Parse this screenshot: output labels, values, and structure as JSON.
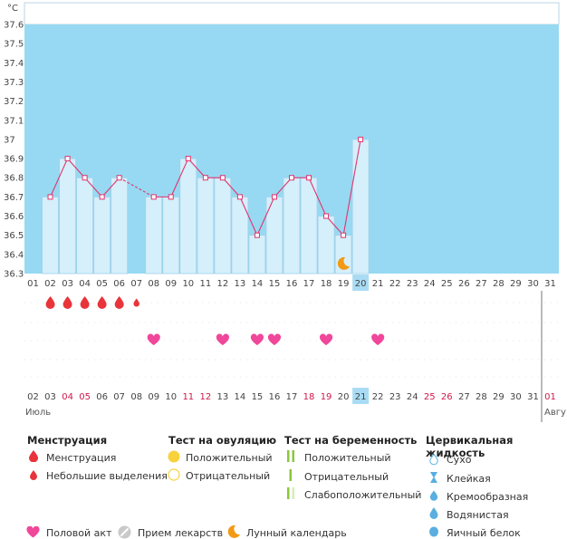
{
  "chart_data": {
    "type": "bar",
    "unit": "°C",
    "ylim": [
      36.3,
      37.6
    ],
    "y_ticks": [
      "36.3",
      "36.4",
      "36.5",
      "36.6",
      "36.7",
      "36.8",
      "36.9",
      "37",
      "37.1",
      "37.2",
      "37.3",
      "37.4",
      "37.5",
      "37.6"
    ],
    "x_top": [
      "01",
      "02",
      "03",
      "04",
      "05",
      "06",
      "07",
      "08",
      "09",
      "10",
      "11",
      "12",
      "13",
      "14",
      "15",
      "16",
      "17",
      "18",
      "19",
      "20",
      "21",
      "22",
      "23",
      "24",
      "25",
      "26",
      "27",
      "28",
      "29",
      "30",
      "31"
    ],
    "values": [
      null,
      36.7,
      36.9,
      36.8,
      36.7,
      36.8,
      null,
      36.7,
      36.7,
      36.9,
      36.8,
      36.8,
      36.7,
      36.5,
      36.7,
      36.8,
      36.8,
      36.6,
      36.5,
      37.0,
      null,
      null,
      null,
      null,
      null,
      null,
      null,
      null,
      null,
      null,
      null
    ],
    "current_day_index": 19,
    "menstruation": [
      {
        "day": 1,
        "kind": "full"
      },
      {
        "day": 2,
        "kind": "full"
      },
      {
        "day": 3,
        "kind": "full"
      },
      {
        "day": 4,
        "kind": "full"
      },
      {
        "day": 5,
        "kind": "full"
      },
      {
        "day": 6,
        "kind": "light"
      }
    ],
    "intercourse_days": [
      7,
      11,
      13,
      14,
      17,
      20
    ],
    "moon_day": 18,
    "x_bottom": [
      "02",
      "03",
      "04",
      "05",
      "06",
      "07",
      "08",
      "09",
      "10",
      "11",
      "12",
      "13",
      "14",
      "15",
      "16",
      "17",
      "18",
      "19",
      "20",
      "21",
      "22",
      "23",
      "24",
      "25",
      "26",
      "27",
      "28",
      "29",
      "30",
      "31",
      "01"
    ],
    "x_bottom_red": [
      false,
      false,
      true,
      true,
      false,
      false,
      false,
      false,
      false,
      true,
      true,
      false,
      false,
      false,
      false,
      false,
      true,
      true,
      false,
      false,
      false,
      false,
      false,
      true,
      true,
      false,
      false,
      false,
      false,
      false,
      true
    ],
    "bottom_current_index": 19,
    "month_left": "Июль",
    "month_right": "Авгу"
  },
  "colors": {
    "sky": "#97d9f2",
    "bar": "#d5effb",
    "bar_edge": "#9fd1ea",
    "line": "#e0356d",
    "current": "#a9dcf4",
    "drop": "#e8343a",
    "heart": "#f0479a",
    "moon": "#f39a14"
  },
  "legend": {
    "menstruation": {
      "title": "Менструация",
      "items": [
        "Менструация",
        "Небольшие выделения"
      ]
    },
    "ovulation": {
      "title": "Тест на овуляцию",
      "items": [
        "Положительный",
        "Отрицательный"
      ]
    },
    "pregnancy": {
      "title": "Тест на беременность",
      "items": [
        "Положительный",
        "Отрицательный",
        "Слабоположительный"
      ]
    },
    "cervical": {
      "title": "Цервикальная жидкость",
      "items": [
        "Сухо",
        "Клейкая",
        "Кремообразная",
        "Водянистая",
        "Яичный белок"
      ]
    },
    "bottom": [
      "Половой акт",
      "Прием лекарств",
      "Лунный календарь"
    ]
  }
}
